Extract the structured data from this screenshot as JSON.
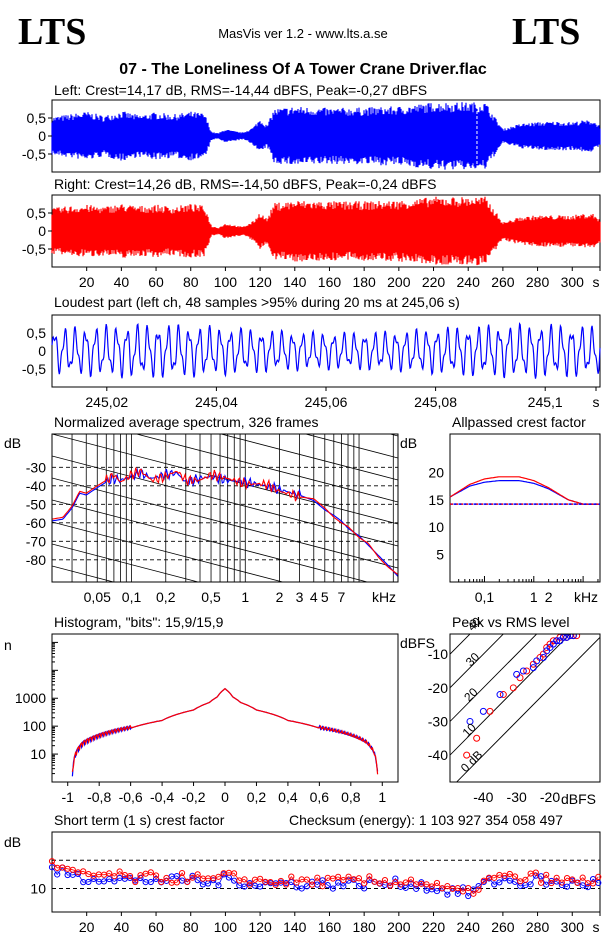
{
  "header": {
    "logo_left": "LTS",
    "logo_right": "LTS",
    "app": "MasVis ver 1.2 - www.lts.a.se",
    "file": "07 - The Loneliness Of A Tower Crane Driver.flac"
  },
  "colors": {
    "left": "#0000ff",
    "right": "#ff0000"
  },
  "chart_data": [
    {
      "id": "left_wave",
      "type": "area",
      "title": "Left: Crest=14,17 dB, RMS=-14,44 dBFS, Peak=-0,27 dBFS",
      "ylim": [
        -1,
        1
      ],
      "yticks": [
        "0,5",
        "0",
        "-0,5"
      ],
      "marker_s": 245.06,
      "x": [
        0,
        10,
        20,
        30,
        40,
        50,
        60,
        70,
        80,
        88,
        92,
        96,
        100,
        104,
        110,
        116,
        120,
        124,
        128,
        140,
        160,
        180,
        200,
        210,
        220,
        230,
        240,
        250,
        256,
        260,
        270,
        280,
        290,
        300,
        306,
        312,
        316
      ],
      "envelope": [
        0.55,
        0.62,
        0.7,
        0.58,
        0.72,
        0.6,
        0.68,
        0.62,
        0.7,
        0.65,
        0.12,
        0.08,
        0.2,
        0.15,
        0.1,
        0.25,
        0.5,
        0.3,
        0.78,
        0.85,
        0.8,
        0.82,
        0.85,
        0.9,
        0.97,
        0.97,
        0.97,
        0.97,
        0.5,
        0.2,
        0.35,
        0.4,
        0.42,
        0.4,
        0.45,
        0.45,
        0.3
      ]
    },
    {
      "id": "right_wave",
      "type": "area",
      "title": "Right: Crest=14,26 dB, RMS=-14,50 dBFS, Peak=-0,24 dBFS",
      "ylim": [
        -1,
        1
      ],
      "yticks": [
        "0,5",
        "0",
        "-0,5"
      ],
      "xlabels": [
        "20",
        "40",
        "60",
        "80",
        "100",
        "120",
        "140",
        "160",
        "180",
        "200",
        "220",
        "240",
        "260",
        "280",
        "300",
        "s"
      ],
      "x": [
        0,
        10,
        20,
        30,
        40,
        50,
        60,
        70,
        80,
        88,
        92,
        96,
        100,
        104,
        110,
        116,
        120,
        124,
        128,
        140,
        160,
        180,
        200,
        210,
        220,
        230,
        240,
        250,
        256,
        260,
        270,
        280,
        290,
        300,
        306,
        312,
        316
      ],
      "envelope": [
        0.65,
        0.72,
        0.75,
        0.7,
        0.78,
        0.72,
        0.75,
        0.7,
        0.78,
        0.72,
        0.15,
        0.1,
        0.22,
        0.18,
        0.12,
        0.28,
        0.55,
        0.35,
        0.8,
        0.88,
        0.85,
        0.85,
        0.88,
        0.92,
        0.98,
        0.98,
        0.98,
        0.98,
        0.55,
        0.25,
        0.4,
        0.45,
        0.45,
        0.45,
        0.5,
        0.5,
        0.35
      ]
    },
    {
      "id": "loudest",
      "type": "line",
      "title": "Loudest part (left  ch, 48 samples >95% during 20 ms at 245,06 s)",
      "ylim": [
        -1,
        1
      ],
      "yticks": [
        "0,5",
        "0",
        "-0,5"
      ],
      "xlim": [
        245.01,
        245.11
      ],
      "xlabels": [
        "245,02",
        "245,04",
        "245,06",
        "245,08",
        "245,1",
        "s"
      ],
      "xtick_values": [
        245.02,
        245.04,
        245.06,
        245.08,
        245.1
      ],
      "cycles": 53,
      "amplitude": 0.82
    },
    {
      "id": "spectrum",
      "type": "line",
      "title": "Normalized average spectrum, 326 frames",
      "ylabel": "dB",
      "yticks": [
        "-30",
        "-40",
        "-50",
        "-60",
        "-70",
        "-80"
      ],
      "ytick_values": [
        -30,
        -40,
        -50,
        -60,
        -70,
        -80
      ],
      "ylim": [
        -92,
        -12
      ],
      "xlabels": [
        "0,05",
        "0,1",
        "0,2",
        "0,5",
        "1",
        "2",
        "3",
        "4",
        "5",
        "7",
        "kHz"
      ],
      "xtick_values": [
        0.05,
        0.1,
        0.2,
        0.5,
        1,
        2,
        3,
        4,
        5,
        7
      ],
      "xlim": [
        0.02,
        22
      ],
      "freq_khz": [
        0.02,
        0.025,
        0.03,
        0.035,
        0.04,
        0.05,
        0.06,
        0.07,
        0.08,
        0.1,
        0.12,
        0.15,
        0.2,
        0.25,
        0.3,
        0.4,
        0.5,
        0.7,
        1,
        1.5,
        2,
        3,
        4,
        5,
        6,
        7,
        8,
        10,
        12,
        15,
        18,
        22
      ],
      "left_db": [
        -59,
        -58,
        -52,
        -44,
        -45,
        -41,
        -38,
        -36,
        -37,
        -35,
        -33,
        -36,
        -34,
        -33,
        -38,
        -36,
        -35,
        -37,
        -38,
        -40,
        -42,
        -45,
        -48,
        -53,
        -56,
        -59,
        -63,
        -67,
        -72,
        -78,
        -83,
        -89
      ],
      "right_db": [
        -58,
        -57,
        -51,
        -43,
        -44,
        -40,
        -37,
        -34,
        -38,
        -34,
        -32,
        -37,
        -35,
        -32,
        -37,
        -37,
        -34,
        -36,
        -39,
        -39,
        -43,
        -46,
        -47,
        -52,
        -57,
        -60,
        -62,
        -68,
        -71,
        -79,
        -84,
        -88
      ]
    },
    {
      "id": "allpass",
      "type": "line",
      "title": "Allpassed crest factor",
      "ylabel": "dB",
      "yticks": [
        "20",
        "15",
        "10",
        "5"
      ],
      "ytick_values": [
        20,
        15,
        10,
        5
      ],
      "ylim": [
        0,
        27
      ],
      "xlabels": [
        "0,1",
        "1",
        "2",
        "kHz"
      ],
      "xtick_values": [
        0.1,
        1,
        2
      ],
      "xlim": [
        0.02,
        22
      ],
      "reference_db": 14.2,
      "freq_khz": [
        0.02,
        0.05,
        0.1,
        0.2,
        0.5,
        1,
        2,
        5,
        10,
        22
      ],
      "left_db": [
        15.5,
        17.5,
        18.2,
        18.5,
        18.5,
        18,
        17,
        15,
        14.2,
        14.2
      ],
      "right_db": [
        15.5,
        17.8,
        18.8,
        19.2,
        19.2,
        18.5,
        17.2,
        15,
        14.2,
        14.2
      ]
    },
    {
      "id": "histogram",
      "type": "line",
      "title": "Histogram, \"bits\": 15,9/15,9",
      "ylabel": "n",
      "yscale": "log",
      "ylim": [
        1,
        200000
      ],
      "yticks": [
        "1000",
        "100",
        "10"
      ],
      "ytick_values": [
        1000,
        100,
        10
      ],
      "xlim": [
        -1.1,
        1.1
      ],
      "xlabels": [
        "-1",
        "-0,8",
        "-0,6",
        "-0,4",
        "-0,2",
        "0",
        "0,2",
        "0,4",
        "0,6",
        "0,8",
        "1"
      ],
      "xtick_values": [
        -1,
        -0.8,
        -0.6,
        -0.4,
        -0.2,
        0,
        0.2,
        0.4,
        0.6,
        0.8,
        1
      ],
      "x": [
        -0.97,
        -0.95,
        -0.9,
        -0.8,
        -0.6,
        -0.4,
        -0.2,
        -0.1,
        -0.05,
        0,
        0.05,
        0.1,
        0.2,
        0.4,
        0.6,
        0.8,
        0.9,
        0.95,
        0.97
      ],
      "n": [
        2,
        10,
        25,
        45,
        85,
        160,
        380,
        700,
        1100,
        2200,
        1100,
        700,
        380,
        160,
        85,
        45,
        25,
        10,
        2
      ]
    },
    {
      "id": "peak_rms",
      "type": "scatter",
      "title": "Peak vs RMS level",
      "ylabel": "dBFS",
      "xlabel": "dBFS",
      "yticks": [
        "-10",
        "-20",
        "-30",
        "-40"
      ],
      "ytick_values": [
        -10,
        -20,
        -30,
        -40
      ],
      "xlabels": [
        "-40",
        "-30",
        "-20"
      ],
      "xtick_values": [
        -40,
        -30,
        -20
      ],
      "xlim": [
        -50,
        -5
      ],
      "ylim": [
        -48,
        -4
      ],
      "diagonal_labels": [
        "40",
        "30",
        "20",
        "10",
        "0 dB"
      ],
      "diagonal_values": [
        40,
        30,
        20,
        10,
        0
      ],
      "left_points": [
        [
          -44,
          -30
        ],
        [
          -40,
          -27
        ],
        [
          -35,
          -22
        ],
        [
          -30,
          -16
        ],
        [
          -28,
          -15
        ],
        [
          -25,
          -14
        ],
        [
          -24,
          -12
        ],
        [
          -22,
          -11
        ],
        [
          -21,
          -9
        ],
        [
          -20,
          -8
        ],
        [
          -19,
          -7
        ],
        [
          -18,
          -6
        ],
        [
          -17,
          -6
        ],
        [
          -16,
          -5
        ],
        [
          -15,
          -5
        ],
        [
          -14,
          -4.5
        ],
        [
          -13,
          -4.5
        ]
      ],
      "right_points": [
        [
          -45,
          -40
        ],
        [
          -42,
          -35
        ],
        [
          -38,
          -27
        ],
        [
          -34,
          -22
        ],
        [
          -31,
          -20
        ],
        [
          -29,
          -17
        ],
        [
          -27,
          -15
        ],
        [
          -25,
          -13
        ],
        [
          -23,
          -11
        ],
        [
          -22,
          -10
        ],
        [
          -21,
          -8
        ],
        [
          -20,
          -7
        ],
        [
          -19,
          -6
        ],
        [
          -18,
          -6
        ],
        [
          -17,
          -5
        ],
        [
          -16,
          -5
        ],
        [
          -15,
          -5
        ],
        [
          -14,
          -4.5
        ],
        [
          -13,
          -4.5
        ],
        [
          -12,
          -4.5
        ]
      ]
    },
    {
      "id": "short_crest",
      "type": "scatter",
      "title": "Short term (1 s) crest factor",
      "checksum": "Checksum (energy):  1 103 927 354 058 497",
      "ylabel": "dB",
      "yticks": [
        "10"
      ],
      "ytick_values": [
        10
      ],
      "ylim": [
        5,
        22
      ],
      "xlim": [
        0,
        316
      ],
      "ref_lines_db": [
        16,
        10
      ],
      "xlabels": [
        "20",
        "40",
        "60",
        "80",
        "100",
        "120",
        "140",
        "160",
        "180",
        "200",
        "220",
        "240",
        "260",
        "280",
        "300",
        "s"
      ],
      "x": [
        0,
        10,
        20,
        30,
        40,
        50,
        60,
        70,
        80,
        90,
        100,
        110,
        120,
        130,
        140,
        150,
        160,
        170,
        180,
        190,
        200,
        210,
        220,
        230,
        240,
        250,
        260,
        270,
        280,
        290,
        300,
        310,
        316
      ],
      "left_db": [
        14,
        13,
        12,
        12.5,
        12,
        11.5,
        12,
        11.5,
        12,
        11,
        12,
        11.5,
        11,
        11,
        11,
        11,
        11,
        11,
        11,
        11,
        11,
        11,
        10,
        9.5,
        9,
        11,
        12,
        11,
        12,
        11,
        11,
        11,
        12
      ],
      "right_db": [
        15,
        13.5,
        12.5,
        13,
        12.5,
        12,
        12.5,
        12,
        12.5,
        11.5,
        12.5,
        12,
        11.5,
        11.5,
        11.5,
        11.5,
        11.5,
        11.5,
        11.5,
        11.5,
        11.5,
        11.5,
        10.5,
        9.5,
        9,
        11.5,
        12.5,
        12,
        12.5,
        11.5,
        11.5,
        11.5,
        12.5
      ]
    }
  ]
}
